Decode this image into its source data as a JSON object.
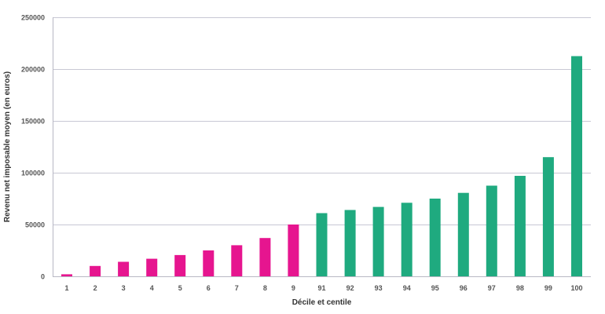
{
  "chart_data": {
    "type": "bar",
    "title": "",
    "xlabel": "Décile et centile",
    "ylabel": "Revenu net imposable moyen (en euros)",
    "ylim": [
      0,
      250000
    ],
    "yticks": [
      0,
      50000,
      100000,
      150000,
      200000,
      250000
    ],
    "grid": true,
    "categories": [
      "1",
      "2",
      "3",
      "4",
      "5",
      "6",
      "7",
      "8",
      "9",
      "91",
      "92",
      "93",
      "94",
      "95",
      "96",
      "97",
      "98",
      "99",
      "100"
    ],
    "values": [
      2000,
      10000,
      14000,
      17000,
      20500,
      25000,
      30000,
      37000,
      50000,
      61000,
      64000,
      67000,
      71000,
      75000,
      80500,
      87500,
      97000,
      115000,
      212500
    ],
    "bar_colors": [
      "#e6158f",
      "#e6158f",
      "#e6158f",
      "#e6158f",
      "#e6158f",
      "#e6158f",
      "#e6158f",
      "#e6158f",
      "#e6158f",
      "#1faa7f",
      "#1faa7f",
      "#1faa7f",
      "#1faa7f",
      "#1faa7f",
      "#1faa7f",
      "#1faa7f",
      "#1faa7f",
      "#1faa7f",
      "#1faa7f"
    ],
    "colors": {
      "decile": "#e6158f",
      "centile": "#1faa7f",
      "gridline": "#c8c8d4"
    }
  }
}
